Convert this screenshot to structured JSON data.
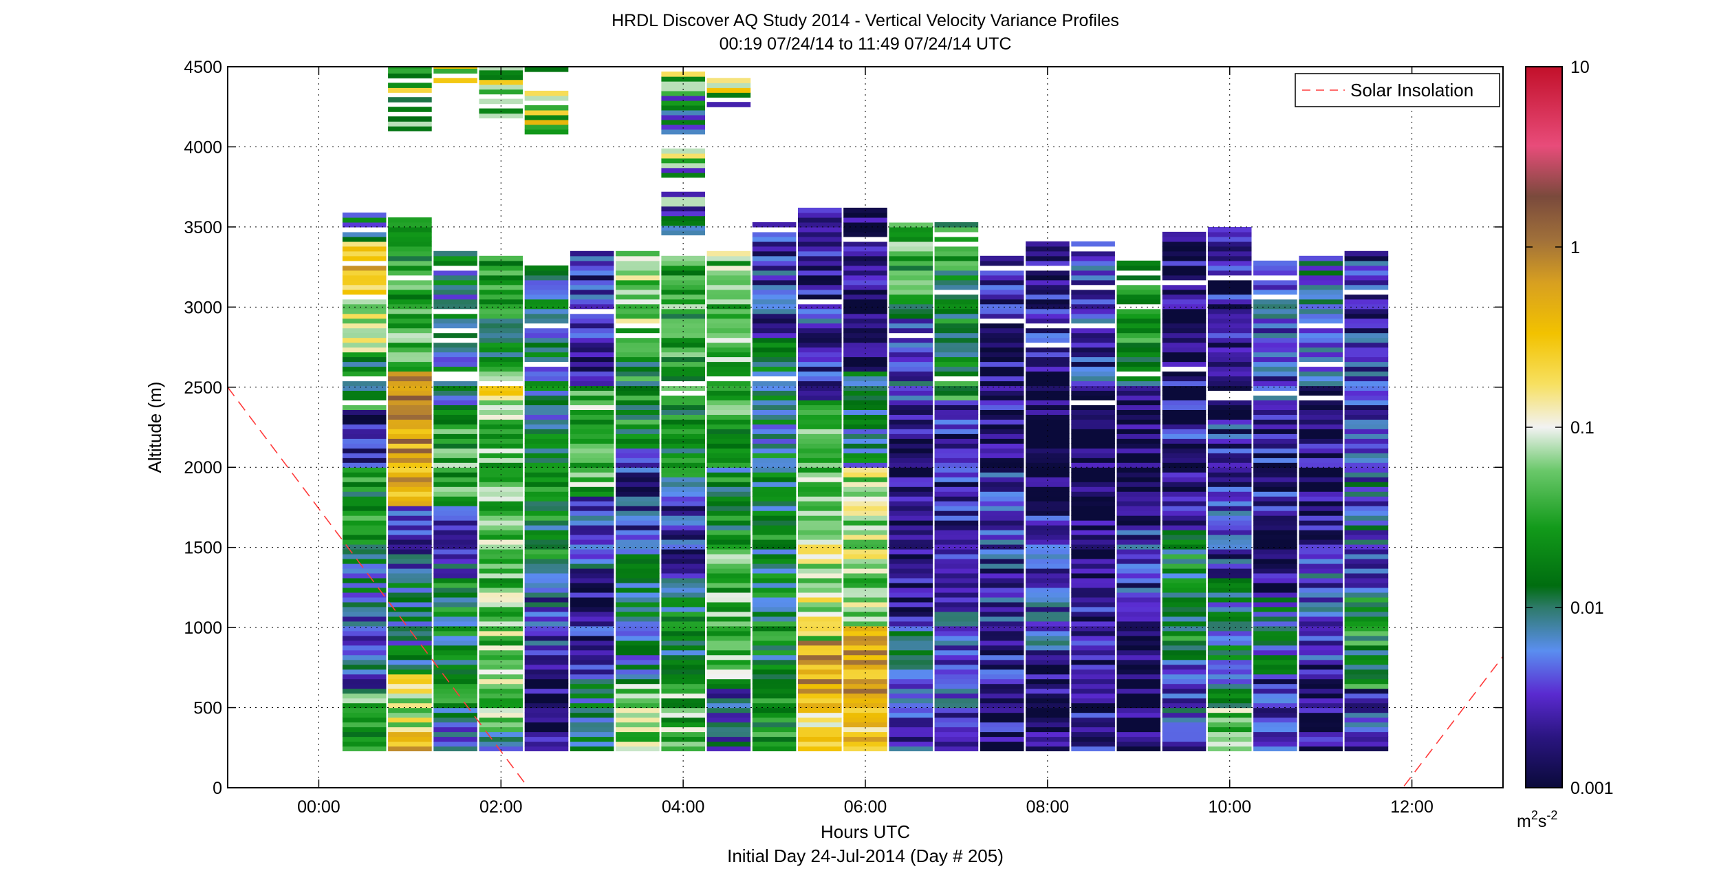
{
  "chart_data": {
    "type": "heatmap",
    "title": "HRDL Discover AQ Study 2014 - Vertical Velocity Variance Profiles",
    "subtitle": "00:19 07/24/14 to 11:49 07/24/14  UTC",
    "xlabel": "Hours UTC",
    "xlabel2": "Initial Day 24-Jul-2014 (Day # 205)",
    "ylabel": "Altitude (m)",
    "x_unit": "hours UTC",
    "xlim": [
      -1.0,
      13.0
    ],
    "ylim": [
      0,
      4500
    ],
    "x_ticks": [
      {
        "value": 0,
        "label": "00:00"
      },
      {
        "value": 2,
        "label": "02:00"
      },
      {
        "value": 4,
        "label": "04:00"
      },
      {
        "value": 6,
        "label": "06:00"
      },
      {
        "value": 8,
        "label": "08:00"
      },
      {
        "value": 10,
        "label": "10:00"
      },
      {
        "value": 12,
        "label": "12:00"
      }
    ],
    "y_ticks": [
      0,
      500,
      1000,
      1500,
      2000,
      2500,
      3000,
      3500,
      4000,
      4500
    ],
    "grid": true,
    "legend": {
      "position": "top-right",
      "entries": [
        {
          "name": "Solar Insolation",
          "style": "dashed",
          "color": "#ff3b3b"
        }
      ]
    },
    "colorbar": {
      "scale": "log",
      "min": 0.001,
      "max": 10,
      "ticks": [
        {
          "value": 10,
          "label": "10"
        },
        {
          "value": 1,
          "label": "1"
        },
        {
          "value": 0.1,
          "label": "0.1"
        },
        {
          "value": 0.01,
          "label": "0.01"
        },
        {
          "value": 0.001,
          "label": "0.001"
        }
      ],
      "unit": "m",
      "unit_sup": "2",
      "unit_mid": "s",
      "unit_sup2": "-2"
    },
    "profiles": [
      {
        "time": 0.5,
        "top": 3580,
        "zones": [
          [
            230,
            600,
            0.03
          ],
          [
            600,
            1100,
            0.005
          ],
          [
            1100,
            1500,
            0.008
          ],
          [
            1500,
            2000,
            0.02
          ],
          [
            2000,
            2350,
            0.002
          ],
          [
            2350,
            2700,
            0.02
          ],
          [
            2700,
            3050,
            0.1
          ],
          [
            3050,
            3400,
            0.4
          ]
        ]
      },
      {
        "time": 1.0,
        "top": 3550,
        "zones": [
          [
            230,
            350,
            0.5
          ],
          [
            350,
            700,
            0.1
          ],
          [
            700,
            1300,
            0.01
          ],
          [
            1300,
            1750,
            0.004
          ],
          [
            1750,
            2600,
            0.6
          ],
          [
            2600,
            3550,
            0.03
          ]
        ]
      },
      {
        "time": 1.5,
        "top": 3350,
        "zones": [
          [
            230,
            500,
            0.007
          ],
          [
            500,
            1300,
            0.015
          ],
          [
            1300,
            1750,
            0.005
          ],
          [
            1750,
            2300,
            0.03
          ],
          [
            2300,
            3350,
            0.01
          ]
        ]
      },
      {
        "time": 2.0,
        "top": 3300,
        "zones": [
          [
            230,
            350,
            0.008
          ],
          [
            350,
            2300,
            0.05
          ],
          [
            2300,
            2600,
            0.12
          ],
          [
            2600,
            3300,
            0.02
          ]
        ]
      },
      {
        "time": 2.5,
        "top": 3250,
        "zones": [
          [
            230,
            700,
            0.0015
          ],
          [
            700,
            1300,
            0.004
          ],
          [
            1300,
            2300,
            0.015
          ],
          [
            2300,
            3250,
            0.01
          ]
        ]
      },
      {
        "time": 3.0,
        "top": 3350,
        "zones": [
          [
            230,
            700,
            0.008
          ],
          [
            700,
            1300,
            0.002
          ],
          [
            1300,
            1800,
            0.004
          ],
          [
            1800,
            2500,
            0.04
          ],
          [
            2500,
            3350,
            0.003
          ]
        ]
      },
      {
        "time": 3.5,
        "top": 3350,
        "zones": [
          [
            230,
            650,
            0.06
          ],
          [
            650,
            1500,
            0.01
          ],
          [
            1500,
            2100,
            0.003
          ],
          [
            2100,
            2700,
            0.02
          ],
          [
            2700,
            3350,
            0.05
          ]
        ]
      },
      {
        "time": 4.0,
        "top": 3300,
        "zones": [
          [
            230,
            600,
            0.04
          ],
          [
            600,
            1300,
            0.015
          ],
          [
            1300,
            1800,
            0.003
          ],
          [
            1800,
            2400,
            0.015
          ],
          [
            2400,
            3300,
            0.03
          ]
        ]
      },
      {
        "time": 4.5,
        "top": 3350,
        "zones": [
          [
            230,
            600,
            0.005
          ],
          [
            600,
            1500,
            0.04
          ],
          [
            1500,
            2300,
            0.015
          ],
          [
            2300,
            3350,
            0.05
          ]
        ]
      },
      {
        "time": 5.0,
        "top": 3530,
        "zones": [
          [
            230,
            800,
            0.02
          ],
          [
            800,
            2100,
            0.015
          ],
          [
            2100,
            2800,
            0.01
          ],
          [
            2800,
            3530,
            0.003
          ]
        ]
      },
      {
        "time": 5.5,
        "top": 3620,
        "zones": [
          [
            230,
            500,
            0.15
          ],
          [
            500,
            900,
            0.5
          ],
          [
            900,
            1600,
            0.08
          ],
          [
            1600,
            2400,
            0.06
          ],
          [
            2400,
            3000,
            0.003
          ],
          [
            3000,
            3620,
            0.002
          ]
        ]
      },
      {
        "time": 6.0,
        "top": 3620,
        "zones": [
          [
            230,
            450,
            0.3
          ],
          [
            450,
            1000,
            0.5
          ],
          [
            1000,
            2000,
            0.07
          ],
          [
            2000,
            2600,
            0.01
          ],
          [
            2600,
            3620,
            0.0015
          ]
        ]
      },
      {
        "time": 6.5,
        "top": 3560,
        "zones": [
          [
            230,
            700,
            0.003
          ],
          [
            700,
            1000,
            0.006
          ],
          [
            1000,
            2400,
            0.0015
          ],
          [
            2400,
            3000,
            0.005
          ],
          [
            3000,
            3560,
            0.03
          ]
        ]
      },
      {
        "time": 7.0,
        "top": 3530,
        "zones": [
          [
            230,
            1500,
            0.004
          ],
          [
            1500,
            2400,
            0.002
          ],
          [
            2400,
            3530,
            0.02
          ]
        ]
      },
      {
        "time": 7.5,
        "top": 3300,
        "zones": [
          [
            230,
            1000,
            0.002
          ],
          [
            1000,
            2000,
            0.003
          ],
          [
            2000,
            3300,
            0.002
          ]
        ]
      },
      {
        "time": 8.0,
        "top": 3400,
        "zones": [
          [
            230,
            800,
            0.0015
          ],
          [
            800,
            1700,
            0.004
          ],
          [
            1700,
            2500,
            0.0012
          ],
          [
            2500,
            3400,
            0.002
          ]
        ]
      },
      {
        "time": 8.5,
        "top": 3400,
        "zones": [
          [
            230,
            1400,
            0.002
          ],
          [
            1400,
            2500,
            0.0012
          ],
          [
            2500,
            3400,
            0.003
          ]
        ]
      },
      {
        "time": 9.0,
        "top": 3270,
        "zones": [
          [
            230,
            1100,
            0.0012
          ],
          [
            1100,
            1600,
            0.003
          ],
          [
            1600,
            2500,
            0.0011
          ],
          [
            2500,
            3270,
            0.02
          ]
        ]
      },
      {
        "time": 9.5,
        "top": 3470,
        "zones": [
          [
            230,
            800,
            0.004
          ],
          [
            800,
            1600,
            0.015
          ],
          [
            1600,
            2600,
            0.002
          ],
          [
            2600,
            3470,
            0.0015
          ]
        ]
      },
      {
        "time": 10.0,
        "top": 3500,
        "zones": [
          [
            230,
            500,
            0.05
          ],
          [
            500,
            1300,
            0.01
          ],
          [
            1300,
            2300,
            0.003
          ],
          [
            2300,
            3500,
            0.002
          ]
        ]
      },
      {
        "time": 10.5,
        "top": 3270,
        "zones": [
          [
            230,
            700,
            0.003
          ],
          [
            700,
            1200,
            0.008
          ],
          [
            1200,
            2400,
            0.002
          ],
          [
            2400,
            3270,
            0.004
          ]
        ]
      },
      {
        "time": 11.0,
        "top": 3320,
        "zones": [
          [
            230,
            800,
            0.0015
          ],
          [
            800,
            1500,
            0.004
          ],
          [
            1500,
            2500,
            0.0015
          ],
          [
            2500,
            3320,
            0.008
          ]
        ]
      },
      {
        "time": 11.5,
        "top": 3350,
        "zones": [
          [
            230,
            600,
            0.003
          ],
          [
            600,
            1200,
            0.02
          ],
          [
            1200,
            2100,
            0.005
          ],
          [
            2100,
            3350,
            0.003
          ]
        ]
      }
    ],
    "upper_cells": [
      {
        "time": 1.0,
        "from": 4100,
        "to": 4500
      },
      {
        "time": 1.5,
        "from": 4400,
        "to": 4500
      },
      {
        "time": 2.0,
        "from": 4180,
        "to": 4500
      },
      {
        "time": 2.5,
        "from": 4080,
        "to": 4500
      },
      {
        "time": 4.0,
        "from": 3450,
        "to": 4500
      },
      {
        "time": 4.5,
        "from": 4250,
        "to": 4420
      }
    ],
    "solar_insolation": [
      {
        "x": -1.0,
        "y": 2500
      },
      {
        "x": 2.3,
        "y": 0
      },
      {
        "x": 11.9,
        "y": 0
      },
      {
        "x": 13.0,
        "y": 820
      }
    ]
  }
}
